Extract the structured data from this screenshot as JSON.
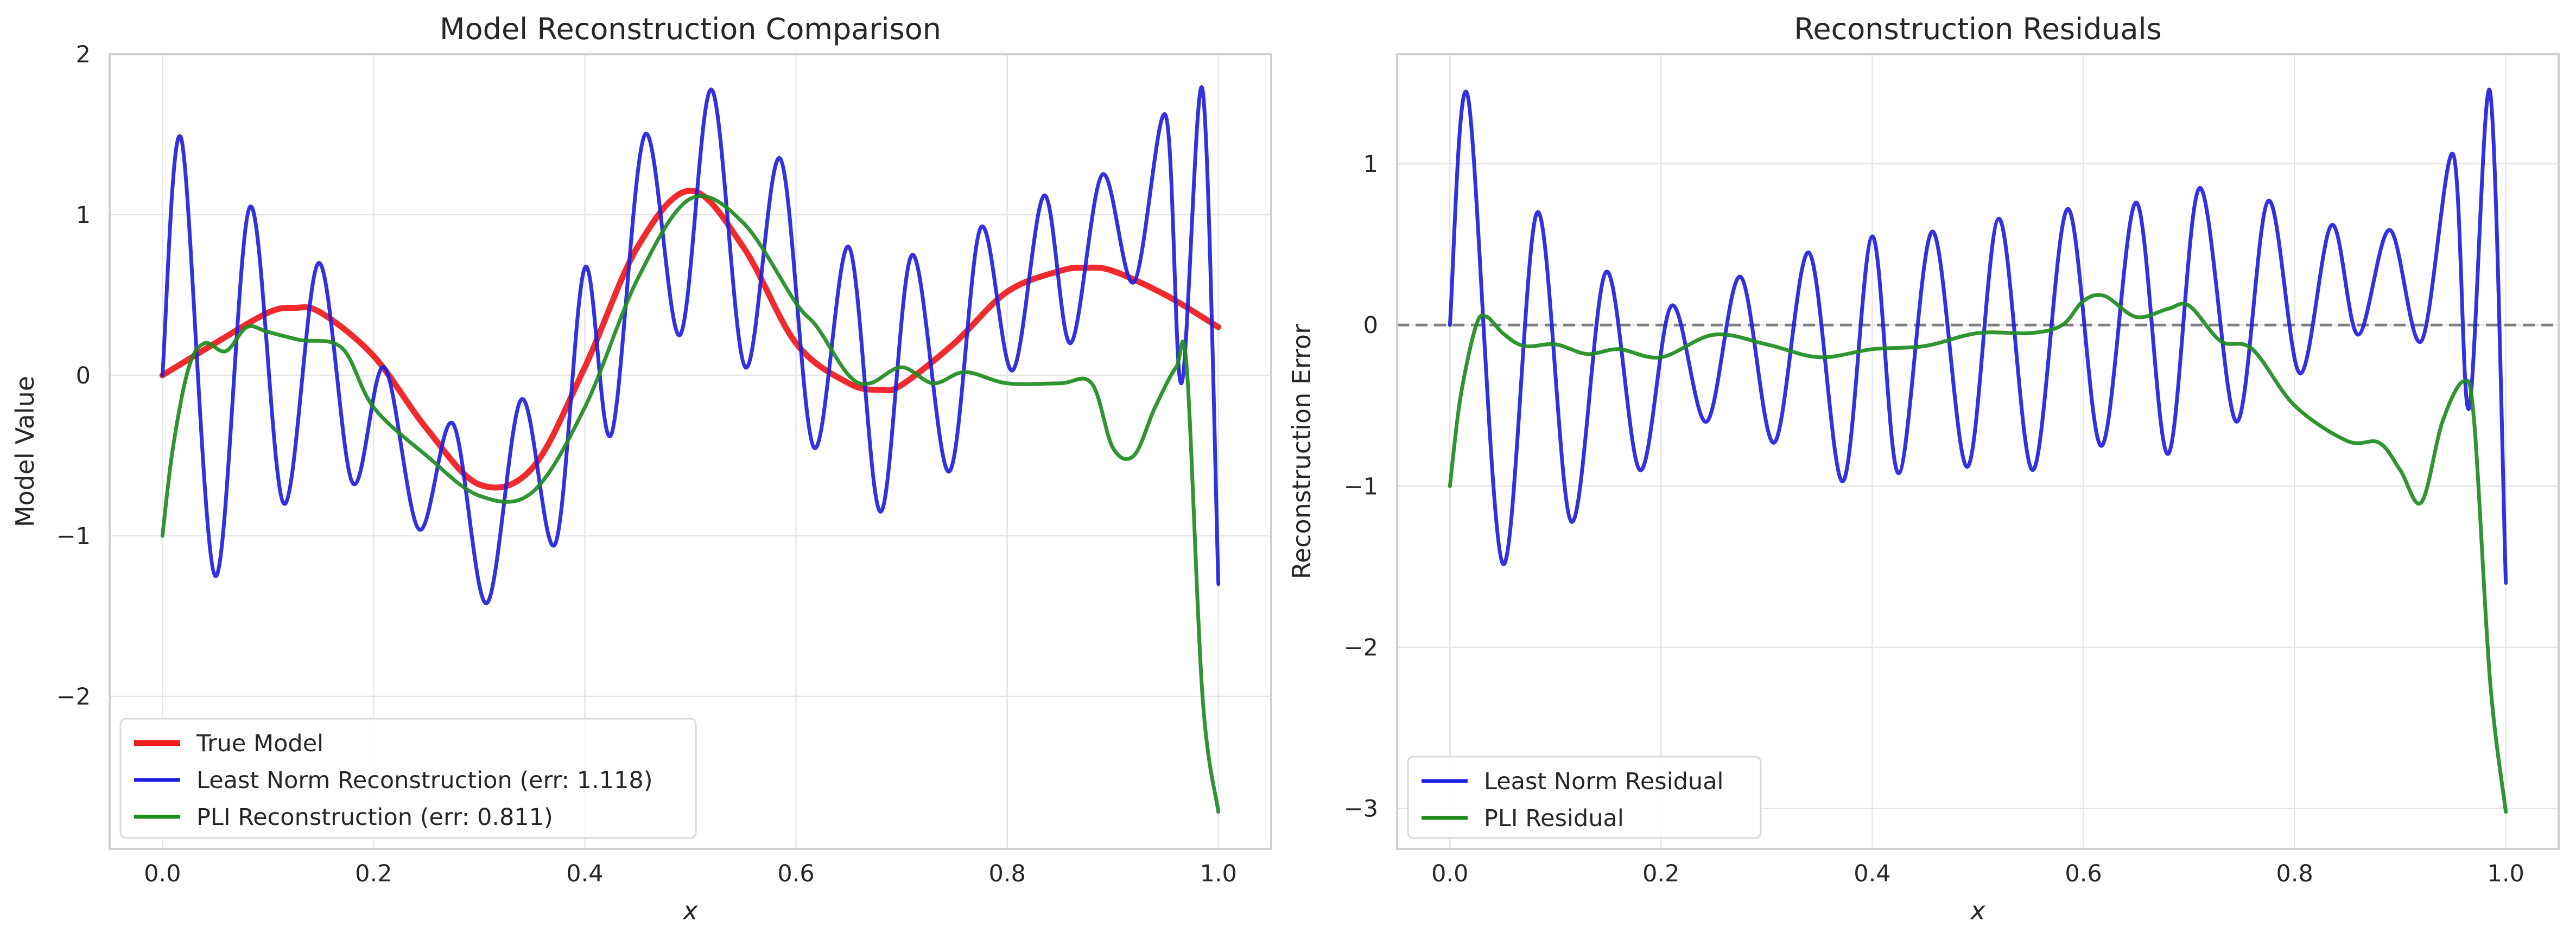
{
  "chart_data": [
    {
      "type": "line",
      "title": "Model Reconstruction Comparison",
      "xlabel": "x",
      "ylabel": "Model Value",
      "xlim": [
        -0.05,
        1.05
      ],
      "ylim": [
        -2.95,
        2.0
      ],
      "xticks": [
        0.0,
        0.2,
        0.4,
        0.6,
        0.8,
        1.0
      ],
      "xtick_labels": [
        "0.0",
        "0.2",
        "0.4",
        "0.6",
        "0.8",
        "1.0"
      ],
      "yticks": [
        -2,
        -1,
        0,
        1,
        2
      ],
      "ytick_labels": [
        "−2",
        "−1",
        "0",
        "1",
        "2"
      ],
      "grid": true,
      "legend": "lower-left",
      "series": [
        {
          "name": "True Model",
          "color": "#f0191b",
          "x": [
            0.0,
            0.05,
            0.1,
            0.125,
            0.15,
            0.2,
            0.25,
            0.3,
            0.35,
            0.4,
            0.45,
            0.5,
            0.55,
            0.6,
            0.65,
            0.68,
            0.7,
            0.75,
            0.8,
            0.85,
            0.875,
            0.9,
            0.95,
            1.0
          ],
          "y": [
            0.0,
            0.2,
            0.39,
            0.42,
            0.39,
            0.12,
            -0.33,
            -0.68,
            -0.58,
            0.05,
            0.8,
            1.15,
            0.8,
            0.2,
            -0.05,
            -0.09,
            -0.06,
            0.2,
            0.52,
            0.65,
            0.67,
            0.65,
            0.5,
            0.3
          ]
        },
        {
          "name": "Least Norm Reconstruction (err: 1.118)",
          "color": "#1f1fe0",
          "x": [
            0.0,
            0.018,
            0.05,
            0.083,
            0.115,
            0.148,
            0.18,
            0.21,
            0.243,
            0.275,
            0.307,
            0.34,
            0.372,
            0.4,
            0.425,
            0.457,
            0.49,
            0.52,
            0.552,
            0.585,
            0.617,
            0.65,
            0.68,
            0.71,
            0.745,
            0.775,
            0.805,
            0.835,
            0.86,
            0.89,
            0.92,
            0.95,
            0.965,
            0.985,
            1.0
          ],
          "y": [
            0.0,
            1.47,
            -1.25,
            1.05,
            -0.8,
            0.7,
            -0.67,
            0.05,
            -0.96,
            -0.3,
            -1.42,
            -0.15,
            -1.05,
            0.67,
            -0.37,
            1.5,
            0.25,
            1.78,
            0.05,
            1.35,
            -0.45,
            0.8,
            -0.85,
            0.75,
            -0.6,
            0.92,
            0.03,
            1.12,
            0.2,
            1.25,
            0.58,
            1.62,
            -0.05,
            1.78,
            -1.3
          ]
        },
        {
          "name": "PLI Reconstruction (err: 0.811)",
          "color": "#1e8c1e",
          "x": [
            0.0,
            0.01,
            0.025,
            0.04,
            0.06,
            0.08,
            0.1,
            0.13,
            0.17,
            0.2,
            0.25,
            0.3,
            0.35,
            0.4,
            0.45,
            0.5,
            0.55,
            0.6,
            0.62,
            0.65,
            0.67,
            0.7,
            0.73,
            0.76,
            0.8,
            0.85,
            0.88,
            0.9,
            0.92,
            0.94,
            0.96,
            0.97,
            0.985,
            1.0
          ],
          "y": [
            -1.0,
            -0.45,
            0.05,
            0.2,
            0.15,
            0.3,
            0.27,
            0.22,
            0.17,
            -0.2,
            -0.5,
            -0.75,
            -0.73,
            -0.2,
            0.6,
            1.1,
            0.95,
            0.45,
            0.3,
            0.0,
            -0.05,
            0.05,
            -0.05,
            0.02,
            -0.05,
            -0.05,
            -0.05,
            -0.45,
            -0.5,
            -0.2,
            0.05,
            0.05,
            -2.0,
            -2.72
          ]
        }
      ]
    },
    {
      "type": "line",
      "title": "Reconstruction Residuals",
      "xlabel": "x",
      "ylabel": "Reconstruction Error",
      "xlim": [
        -0.05,
        1.05
      ],
      "ylim": [
        -3.25,
        1.68
      ],
      "xticks": [
        0.0,
        0.2,
        0.4,
        0.6,
        0.8,
        1.0
      ],
      "xtick_labels": [
        "0.0",
        "0.2",
        "0.4",
        "0.6",
        "0.8",
        "1.0"
      ],
      "yticks": [
        -3,
        -2,
        -1,
        0,
        1
      ],
      "ytick_labels": [
        "−3",
        "−2",
        "−1",
        "0",
        "1"
      ],
      "grid": true,
      "legend": "lower-left",
      "reference_line": {
        "y": 0,
        "color": "#7f7f7f",
        "style": "dashed"
      },
      "series": [
        {
          "name": "Least Norm Residual",
          "color": "#1f1fe0",
          "x": [
            0.0,
            0.017,
            0.05,
            0.083,
            0.115,
            0.148,
            0.18,
            0.21,
            0.243,
            0.275,
            0.307,
            0.34,
            0.372,
            0.4,
            0.425,
            0.457,
            0.49,
            0.52,
            0.552,
            0.585,
            0.617,
            0.65,
            0.68,
            0.71,
            0.745,
            0.775,
            0.805,
            0.835,
            0.86,
            0.89,
            0.92,
            0.95,
            0.965,
            0.985,
            1.0
          ],
          "y": [
            0.0,
            1.42,
            -1.48,
            0.7,
            -1.22,
            0.33,
            -0.9,
            0.12,
            -0.6,
            0.3,
            -0.73,
            0.45,
            -0.97,
            0.55,
            -0.92,
            0.58,
            -0.88,
            0.66,
            -0.9,
            0.72,
            -0.75,
            0.76,
            -0.8,
            0.85,
            -0.6,
            0.77,
            -0.3,
            0.62,
            -0.06,
            0.59,
            -0.1,
            1.06,
            -0.52,
            1.45,
            -1.6
          ]
        },
        {
          "name": "PLI Residual",
          "color": "#1e8c1e",
          "x": [
            0.0,
            0.01,
            0.025,
            0.035,
            0.05,
            0.07,
            0.1,
            0.13,
            0.16,
            0.2,
            0.25,
            0.3,
            0.35,
            0.4,
            0.45,
            0.5,
            0.55,
            0.58,
            0.6,
            0.62,
            0.65,
            0.68,
            0.7,
            0.73,
            0.76,
            0.8,
            0.85,
            0.88,
            0.9,
            0.92,
            0.94,
            0.96,
            0.97,
            0.985,
            1.0
          ],
          "y": [
            -1.0,
            -0.45,
            0.0,
            0.05,
            -0.05,
            -0.13,
            -0.12,
            -0.18,
            -0.15,
            -0.2,
            -0.06,
            -0.12,
            -0.2,
            -0.15,
            -0.13,
            -0.05,
            -0.05,
            0.0,
            0.15,
            0.18,
            0.05,
            0.1,
            0.12,
            -0.1,
            -0.15,
            -0.5,
            -0.72,
            -0.73,
            -0.9,
            -1.1,
            -0.6,
            -0.35,
            -0.6,
            -2.2,
            -3.02
          ]
        }
      ]
    }
  ]
}
